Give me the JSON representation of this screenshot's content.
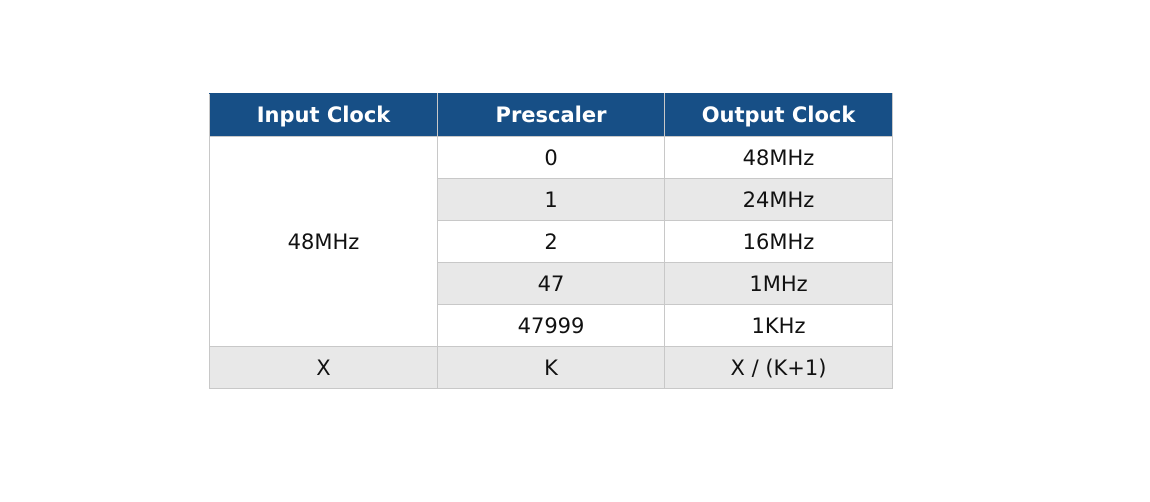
{
  "table": {
    "headers": {
      "input_clock": "Input Clock",
      "prescaler": "Prescaler",
      "output_clock": "Output Clock"
    },
    "merged_input_clock": "48MHz",
    "rows": [
      {
        "prescaler": "0",
        "output": "48MHz"
      },
      {
        "prescaler": "1",
        "output": "24MHz"
      },
      {
        "prescaler": "2",
        "output": "16MHz"
      },
      {
        "prescaler": "47",
        "output": "1MHz"
      },
      {
        "prescaler": "47999",
        "output": "1KHz"
      }
    ],
    "formula_row": {
      "input": "X",
      "prescaler": "K",
      "output": "X / (K+1)"
    }
  },
  "colors": {
    "header_bg": "#174f86",
    "header_text": "#ffffff",
    "row_alt_bg": "#e8e8e8",
    "border": "#c8c8c8"
  }
}
